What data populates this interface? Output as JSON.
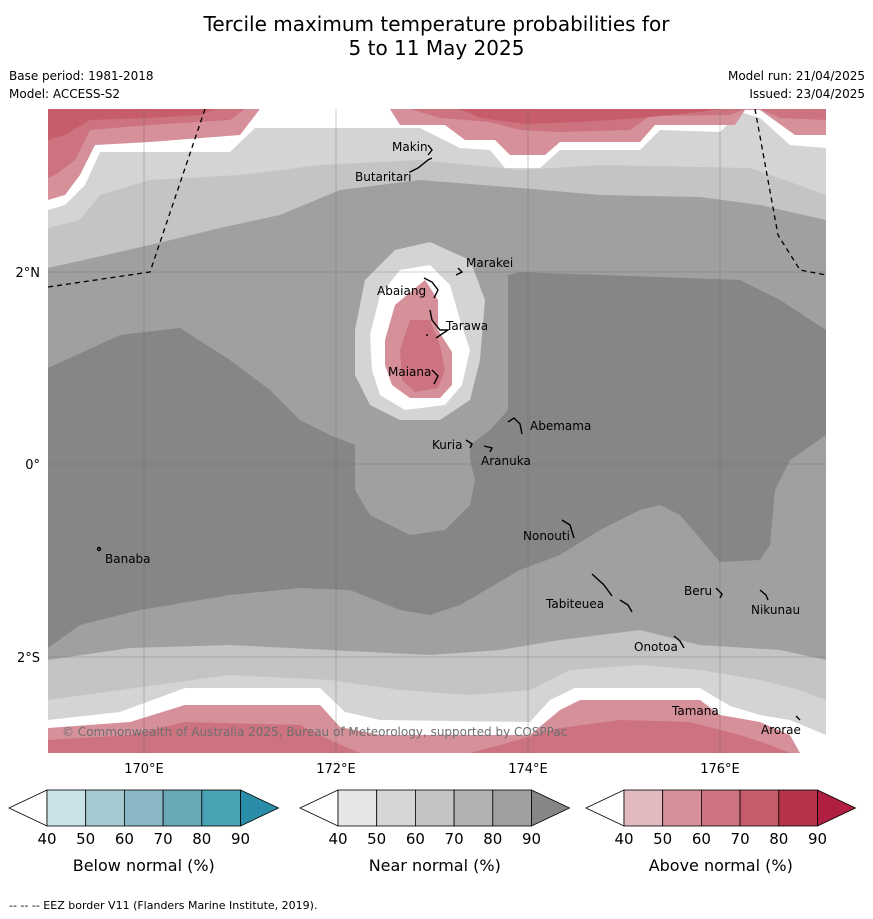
{
  "title": {
    "line1": "Tercile maximum temperature probabilities for",
    "line2": "5 to 11 May 2025"
  },
  "info": {
    "base_period": "Base period: 1981-2018",
    "model": "Model: ACCESS-S2",
    "model_run": "Model run: 21/04/2025",
    "issued": "Issued: 23/04/2025"
  },
  "map": {
    "copyright": "© Commonwealth of Australia 2025, Bureau of Meteorology, supported by COSPPac",
    "lat_labels": [
      "2°N",
      "0°",
      "2°S"
    ],
    "lon_labels": [
      "170°E",
      "172°E",
      "174°E",
      "176°E"
    ],
    "places": [
      "Makin",
      "Butaritari",
      "Marakei",
      "Abaiang",
      "Tarawa",
      "Maiana",
      "Abemama",
      "Kuria",
      "Aranuka",
      "Nonouti",
      "Banaba",
      "Tabiteuea",
      "Beru",
      "Nikunau",
      "Onotoa",
      "Tamana",
      "Arorae"
    ]
  },
  "colorbars": [
    {
      "label": "Below normal (%)",
      "ticks": [
        "40",
        "50",
        "60",
        "70",
        "80",
        "90"
      ],
      "colors": [
        "#ffffff",
        "#c9e2e8",
        "#a6cad2",
        "#8ab8c4",
        "#6aa9b8",
        "#48a2b3",
        "#2a8ea8"
      ]
    },
    {
      "label": "Near normal (%)",
      "ticks": [
        "40",
        "50",
        "60",
        "70",
        "80",
        "90"
      ],
      "colors": [
        "#ffffff",
        "#e6e6e6",
        "#d6d6d6",
        "#c4c4c4",
        "#b2b2b2",
        "#a0a0a0",
        "#868686"
      ]
    },
    {
      "label": "Above normal (%)",
      "ticks": [
        "40",
        "50",
        "60",
        "70",
        "80",
        "90"
      ],
      "colors": [
        "#ffffff",
        "#e2b9bf",
        "#d6909a",
        "#cd7380",
        "#c75d6a",
        "#b7334a",
        "#b01e40"
      ]
    }
  ],
  "footer": "-- -- -- EEZ border V11 (Flanders Marine Institute, 2019)."
}
